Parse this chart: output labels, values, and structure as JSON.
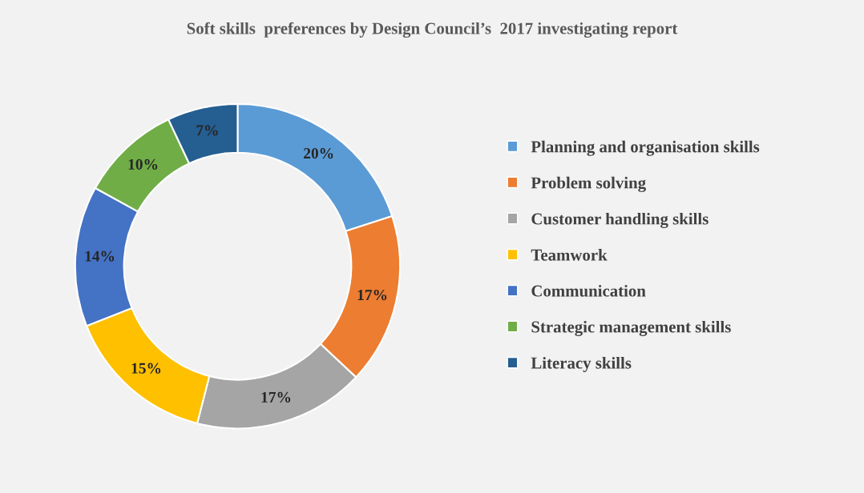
{
  "chart_data": {
    "type": "donut",
    "title": "Soft skills  preferences by Design Council’s  2017 investigating report",
    "categories": [
      "Planning and organisation skills",
      "Problem solving",
      "Customer handling skills",
      "Teamwork",
      "Communication",
      "Strategic management skills",
      "Literacy skills"
    ],
    "values": [
      20,
      17,
      17,
      15,
      14,
      10,
      7
    ],
    "value_labels": [
      "20%",
      "17%",
      "17%",
      "15%",
      "14%",
      "10%",
      "7%"
    ],
    "colors": [
      "#5b9bd5",
      "#ed7d31",
      "#a5a5a5",
      "#ffc000",
      "#4472c4",
      "#70ad47",
      "#255e91"
    ],
    "legend": "right"
  }
}
